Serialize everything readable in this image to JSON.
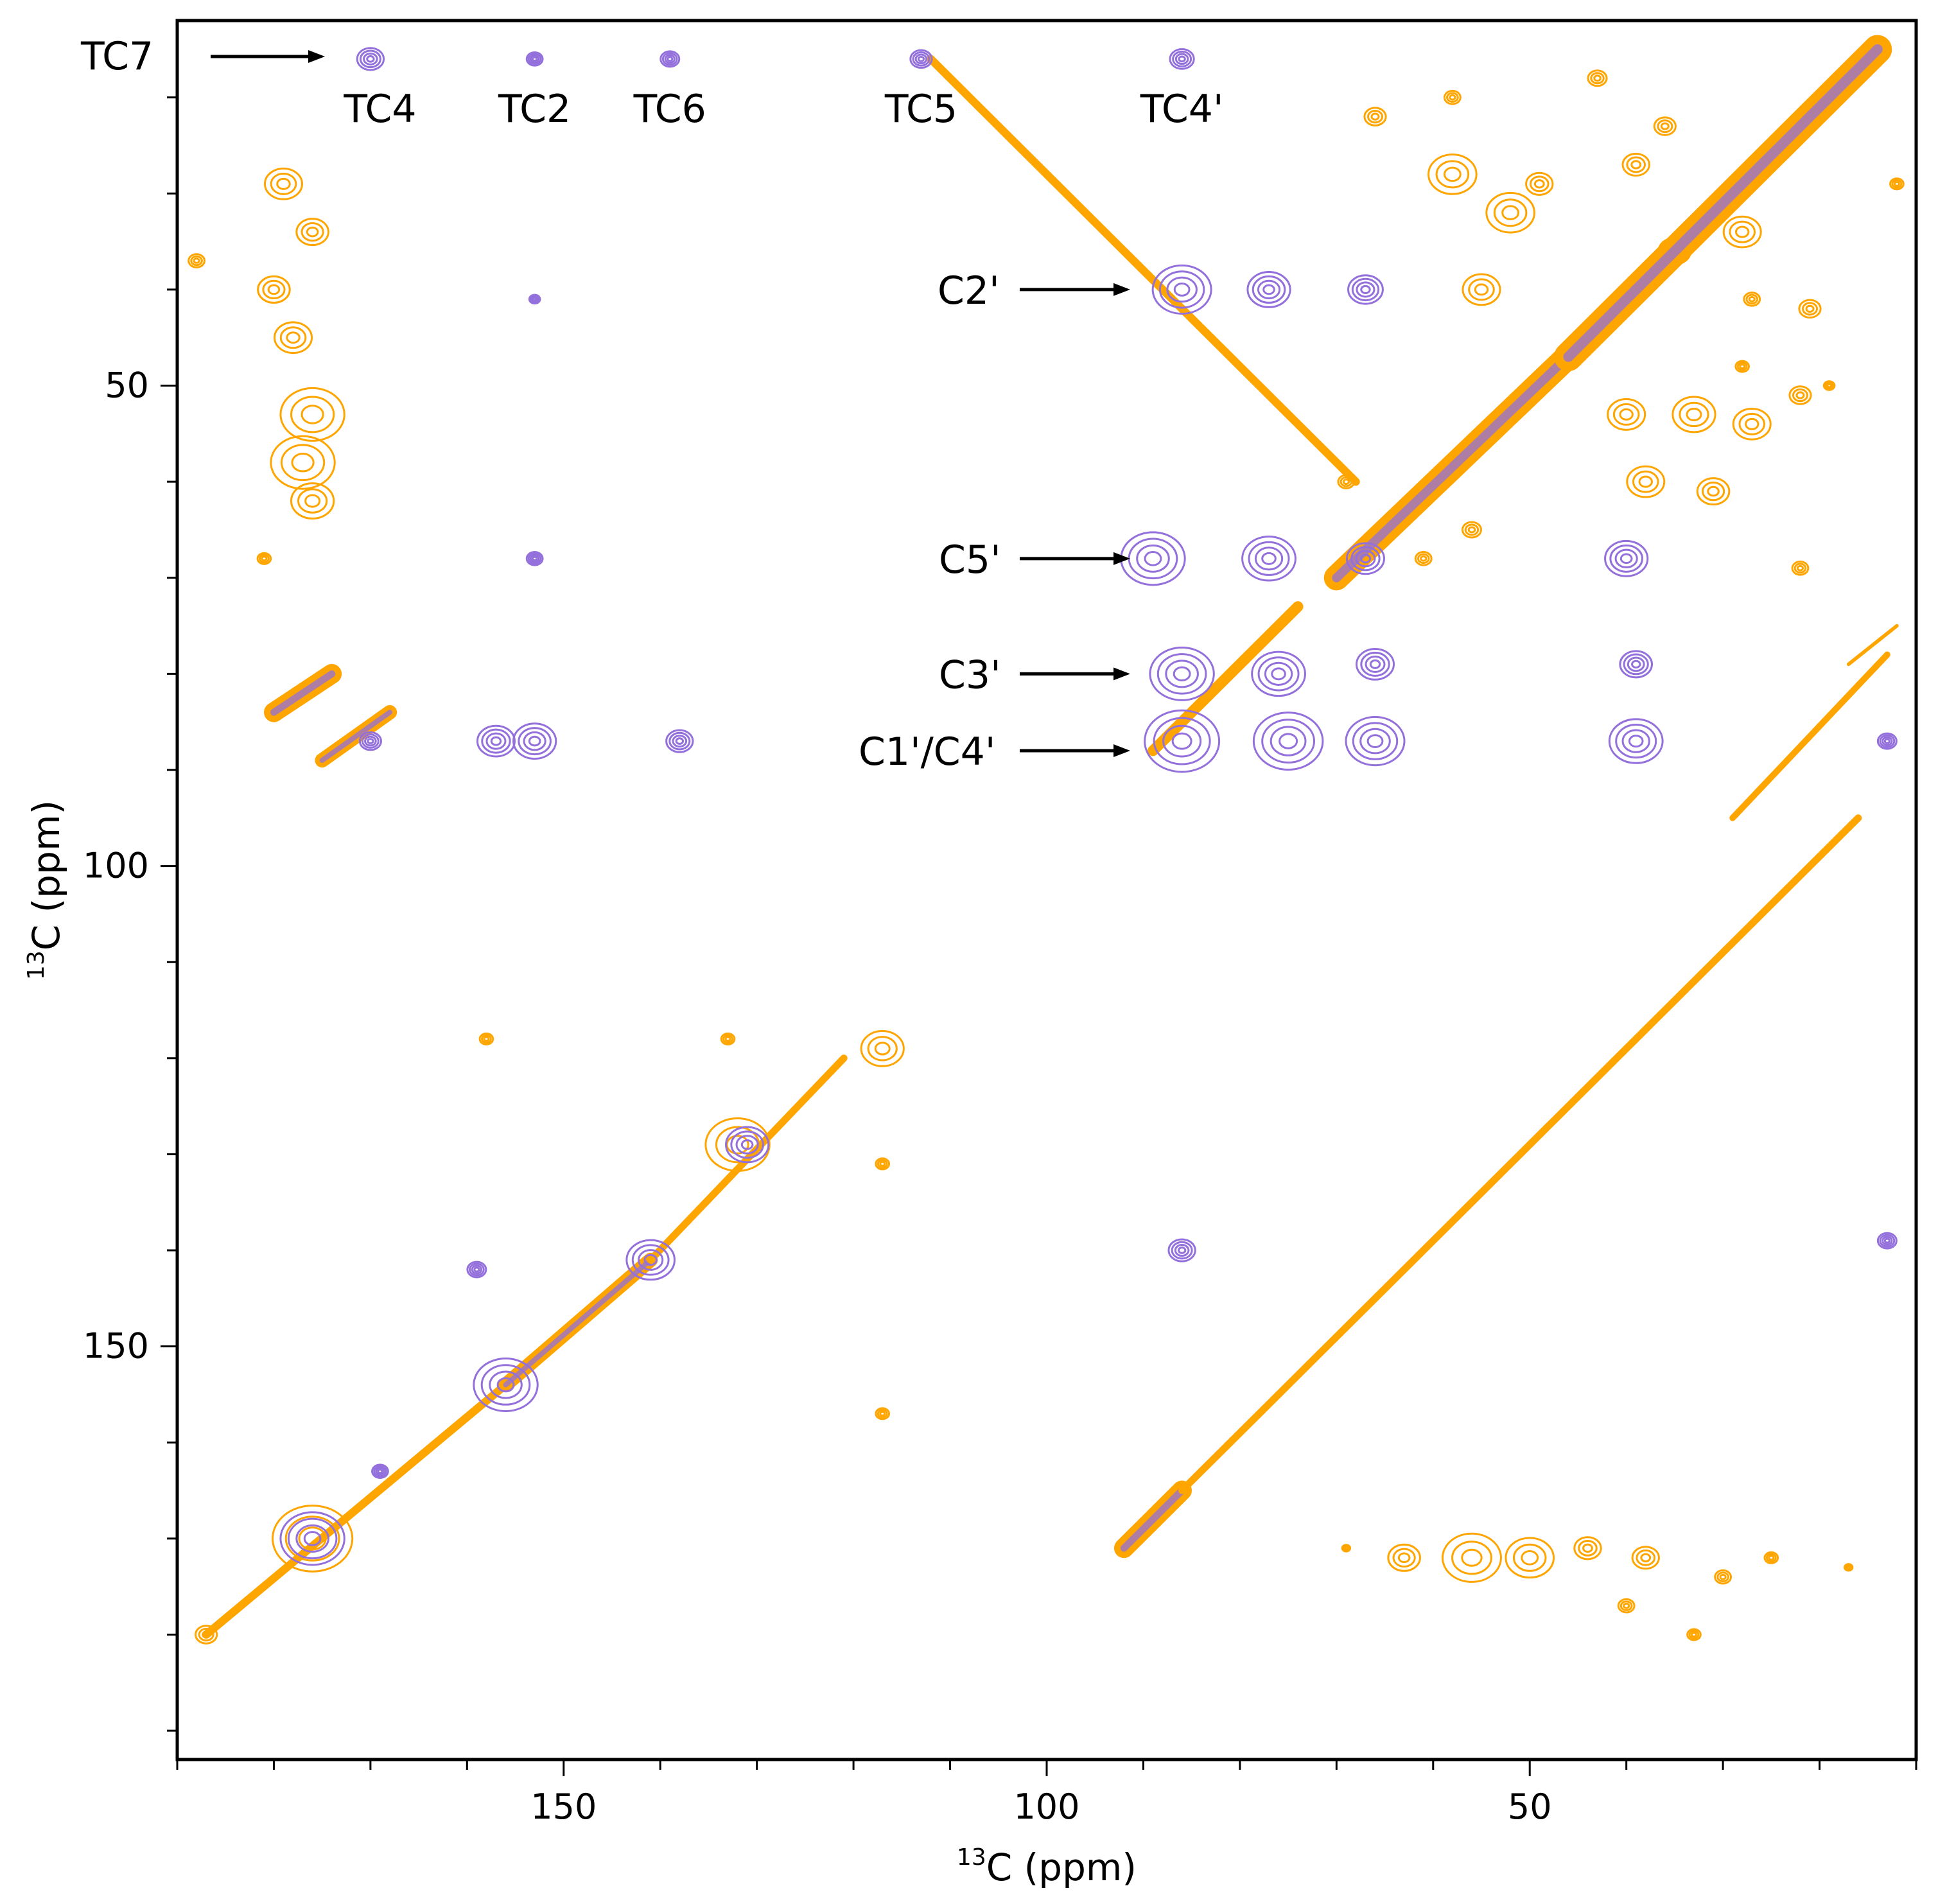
{
  "chart_data": {
    "type": "2D NMR contour plot (13C-13C correlation)",
    "xaxis": {
      "label_sup": "13",
      "label_main": "C  (ppm)",
      "range": [
        190,
        10
      ],
      "ticks": [
        150,
        100,
        50
      ],
      "tick_labels": [
        "150",
        "100",
        "50"
      ],
      "minor_step": 10
    },
    "yaxis": {
      "label_sup": "13",
      "label_main": "C  (ppm)",
      "range": [
        12,
        193
      ],
      "ticks": [
        50,
        100,
        150
      ],
      "tick_labels": [
        "50",
        "100",
        "150"
      ],
      "minor_step": 10
    },
    "series": [
      {
        "name": "orange spectrum",
        "color": "#ffa500"
      },
      {
        "name": "purple spectrum",
        "color": "#9370db"
      }
    ],
    "top_labels": [
      {
        "text": "TC4",
        "x": 169
      },
      {
        "text": "TC2",
        "x": 153
      },
      {
        "text": "TC6",
        "x": 139
      },
      {
        "text": "TC5",
        "x": 113
      },
      {
        "text": "TC4'",
        "x": 86
      }
    ],
    "row_labels": [
      {
        "text": "TC7",
        "y": 16
      },
      {
        "text": "C2'",
        "y": 40
      },
      {
        "text": "C5'",
        "y": 68
      },
      {
        "text": "C3'",
        "y": 80
      },
      {
        "text": "C1'/C4'",
        "y": 88
      }
    ],
    "purple_peaks": [
      {
        "x": 170,
        "y": 16,
        "size": 1
      },
      {
        "x": 153,
        "y": 16,
        "size": 0.6
      },
      {
        "x": 139,
        "y": 16,
        "size": 0.7
      },
      {
        "x": 113,
        "y": 16,
        "size": 0.8
      },
      {
        "x": 86,
        "y": 16,
        "size": 0.9
      },
      {
        "x": 86,
        "y": 40,
        "size": 2.2
      },
      {
        "x": 77,
        "y": 40,
        "size": 1.6
      },
      {
        "x": 67,
        "y": 40,
        "size": 1.3
      },
      {
        "x": 153,
        "y": 41,
        "size": 0.4
      },
      {
        "x": 89,
        "y": 68,
        "size": 2.4
      },
      {
        "x": 77,
        "y": 68,
        "size": 2.0
      },
      {
        "x": 67,
        "y": 68,
        "size": 1.4
      },
      {
        "x": 40,
        "y": 68,
        "size": 1.6
      },
      {
        "x": 153,
        "y": 68,
        "size": 0.6
      },
      {
        "x": 86,
        "y": 80,
        "size": 2.4
      },
      {
        "x": 76,
        "y": 80,
        "size": 2.0
      },
      {
        "x": 66,
        "y": 79,
        "size": 1.4
      },
      {
        "x": 39,
        "y": 79,
        "size": 1.2
      },
      {
        "x": 86,
        "y": 87,
        "size": 2.8
      },
      {
        "x": 75,
        "y": 87,
        "size": 2.6
      },
      {
        "x": 66,
        "y": 87,
        "size": 2.2
      },
      {
        "x": 39,
        "y": 87,
        "size": 2.0
      },
      {
        "x": 170,
        "y": 87,
        "size": 0.8
      },
      {
        "x": 157,
        "y": 87,
        "size": 1.4
      },
      {
        "x": 153,
        "y": 87,
        "size": 1.6
      },
      {
        "x": 138,
        "y": 87,
        "size": 1.0
      },
      {
        "x": 13,
        "y": 87,
        "size": 0.7
      },
      {
        "x": 86,
        "y": 140,
        "size": 1.0
      },
      {
        "x": 159,
        "y": 142,
        "size": 0.7
      },
      {
        "x": 13,
        "y": 139,
        "size": 0.7
      },
      {
        "x": 156,
        "y": 154,
        "size": 2.4
      },
      {
        "x": 131,
        "y": 129,
        "size": 1.6
      },
      {
        "x": 141,
        "y": 141,
        "size": 1.8
      },
      {
        "x": 176,
        "y": 170,
        "size": 2.4
      },
      {
        "x": 169,
        "y": 163,
        "size": 0.6
      }
    ],
    "orange_peaks": [
      {
        "x": 179,
        "y": 29,
        "size": 1.4
      },
      {
        "x": 176,
        "y": 34,
        "size": 1.2
      },
      {
        "x": 180,
        "y": 40,
        "size": 1.2
      },
      {
        "x": 178,
        "y": 45,
        "size": 1.4
      },
      {
        "x": 176,
        "y": 53,
        "size": 2.4
      },
      {
        "x": 177,
        "y": 58,
        "size": 2.4
      },
      {
        "x": 176,
        "y": 62,
        "size": 1.6
      },
      {
        "x": 181,
        "y": 68,
        "size": 0.5
      },
      {
        "x": 188,
        "y": 37,
        "size": 0.6
      },
      {
        "x": 117,
        "y": 119,
        "size": 1.6
      },
      {
        "x": 158,
        "y": 118,
        "size": 0.5
      },
      {
        "x": 133,
        "y": 118,
        "size": 0.5
      },
      {
        "x": 117,
        "y": 131,
        "size": 0.5
      },
      {
        "x": 117,
        "y": 157,
        "size": 0.5
      },
      {
        "x": 132,
        "y": 129,
        "size": 2.4
      },
      {
        "x": 176,
        "y": 170,
        "size": 3.0
      },
      {
        "x": 187,
        "y": 180,
        "size": 0.8
      },
      {
        "x": 56,
        "y": 172,
        "size": 2.2
      },
      {
        "x": 50,
        "y": 172,
        "size": 1.8
      },
      {
        "x": 63,
        "y": 172,
        "size": 1.2
      },
      {
        "x": 44,
        "y": 171,
        "size": 1.0
      },
      {
        "x": 38,
        "y": 172,
        "size": 1.0
      },
      {
        "x": 30,
        "y": 174,
        "size": 0.6
      },
      {
        "x": 40,
        "y": 177,
        "size": 0.6
      },
      {
        "x": 33,
        "y": 180,
        "size": 0.5
      },
      {
        "x": 25,
        "y": 172,
        "size": 0.5
      },
      {
        "x": 69,
        "y": 171,
        "size": 0.3
      },
      {
        "x": 17,
        "y": 173,
        "size": 0.3
      },
      {
        "x": 58,
        "y": 28,
        "size": 1.8
      },
      {
        "x": 52,
        "y": 32,
        "size": 1.8
      },
      {
        "x": 55,
        "y": 40,
        "size": 1.4
      },
      {
        "x": 49,
        "y": 29,
        "size": 1.0
      },
      {
        "x": 35,
        "y": 36,
        "size": 1.2
      },
      {
        "x": 28,
        "y": 34,
        "size": 1.4
      },
      {
        "x": 39,
        "y": 27,
        "size": 1.0
      },
      {
        "x": 66,
        "y": 22,
        "size": 0.8
      },
      {
        "x": 58,
        "y": 20,
        "size": 0.6
      },
      {
        "x": 43,
        "y": 18,
        "size": 0.7
      },
      {
        "x": 36,
        "y": 23,
        "size": 0.8
      },
      {
        "x": 40,
        "y": 53,
        "size": 1.4
      },
      {
        "x": 33,
        "y": 53,
        "size": 1.6
      },
      {
        "x": 27,
        "y": 54,
        "size": 1.4
      },
      {
        "x": 38,
        "y": 60,
        "size": 1.4
      },
      {
        "x": 31,
        "y": 61,
        "size": 1.2
      },
      {
        "x": 22,
        "y": 51,
        "size": 0.8
      },
      {
        "x": 22,
        "y": 69,
        "size": 0.6
      },
      {
        "x": 69,
        "y": 60,
        "size": 0.6
      },
      {
        "x": 61,
        "y": 68,
        "size": 0.6
      },
      {
        "x": 56,
        "y": 65,
        "size": 0.7
      },
      {
        "x": 28,
        "y": 48,
        "size": 0.5
      },
      {
        "x": 19,
        "y": 50,
        "size": 0.4
      },
      {
        "x": 12,
        "y": 29,
        "size": 0.5
      },
      {
        "x": 27,
        "y": 41,
        "size": 0.6
      },
      {
        "x": 21,
        "y": 42,
        "size": 0.8
      }
    ],
    "diagonals": [
      {
        "from": [
          180,
          84
        ],
        "to": [
          174,
          80
        ],
        "width": 2.2
      },
      {
        "from": [
          175,
          89
        ],
        "to": [
          168,
          84
        ],
        "width": 1.6
      },
      {
        "from": [
          112,
          16
        ],
        "to": [
          68,
          60
        ],
        "width": 0.9
      },
      {
        "from": [
          89,
          88
        ],
        "to": [
          74,
          73
        ],
        "width": 1.2
      },
      {
        "from": [
          70,
          70
        ],
        "to": [
          44,
          45
        ],
        "width": 2.8
      },
      {
        "from": [
          46,
          47
        ],
        "to": [
          14,
          15
        ],
        "width": 3.2
      },
      {
        "from": [
          92,
          171
        ],
        "to": [
          86,
          165
        ],
        "width": 2.2
      },
      {
        "from": [
          86,
          165
        ],
        "to": [
          76,
          155
        ],
        "width": 0.8
      },
      {
        "from": [
          76,
          155
        ],
        "to": [
          16,
          95
        ],
        "width": 0.8
      },
      {
        "from": [
          187,
          180
        ],
        "to": [
          156,
          154
        ],
        "width": 0.9
      },
      {
        "from": [
          156,
          154
        ],
        "to": [
          141,
          141
        ],
        "width": 1.6
      },
      {
        "from": [
          141,
          141
        ],
        "to": [
          121,
          120
        ],
        "width": 0.8
      },
      {
        "from": [
          17,
          79
        ],
        "to": [
          12,
          75
        ],
        "width": 0.4
      },
      {
        "from": [
          29,
          95
        ],
        "to": [
          13,
          78
        ],
        "width": 0.7
      }
    ]
  }
}
